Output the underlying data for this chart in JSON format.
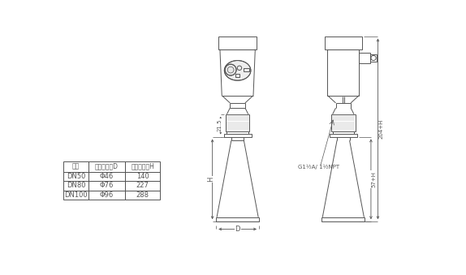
{
  "bg_color": "#ffffff",
  "lc": "#555555",
  "ll": "#aaaaaa",
  "lc_dark": "#333333",
  "table_header": [
    "法兰",
    "喇叭口直径D",
    "喇叭口高度H"
  ],
  "table_rows": [
    [
      "DN50",
      "Φ46",
      "140"
    ],
    [
      "DN80",
      "Φ76",
      "227"
    ],
    [
      "DN100",
      "Φ96",
      "288"
    ]
  ],
  "dim_21_5": "21.5",
  "dim_H": "H",
  "dim_D": "D",
  "dim_204H": "204+H",
  "dim_57H": "57+H",
  "dim_thread": "G1½A/ 1½NPT"
}
